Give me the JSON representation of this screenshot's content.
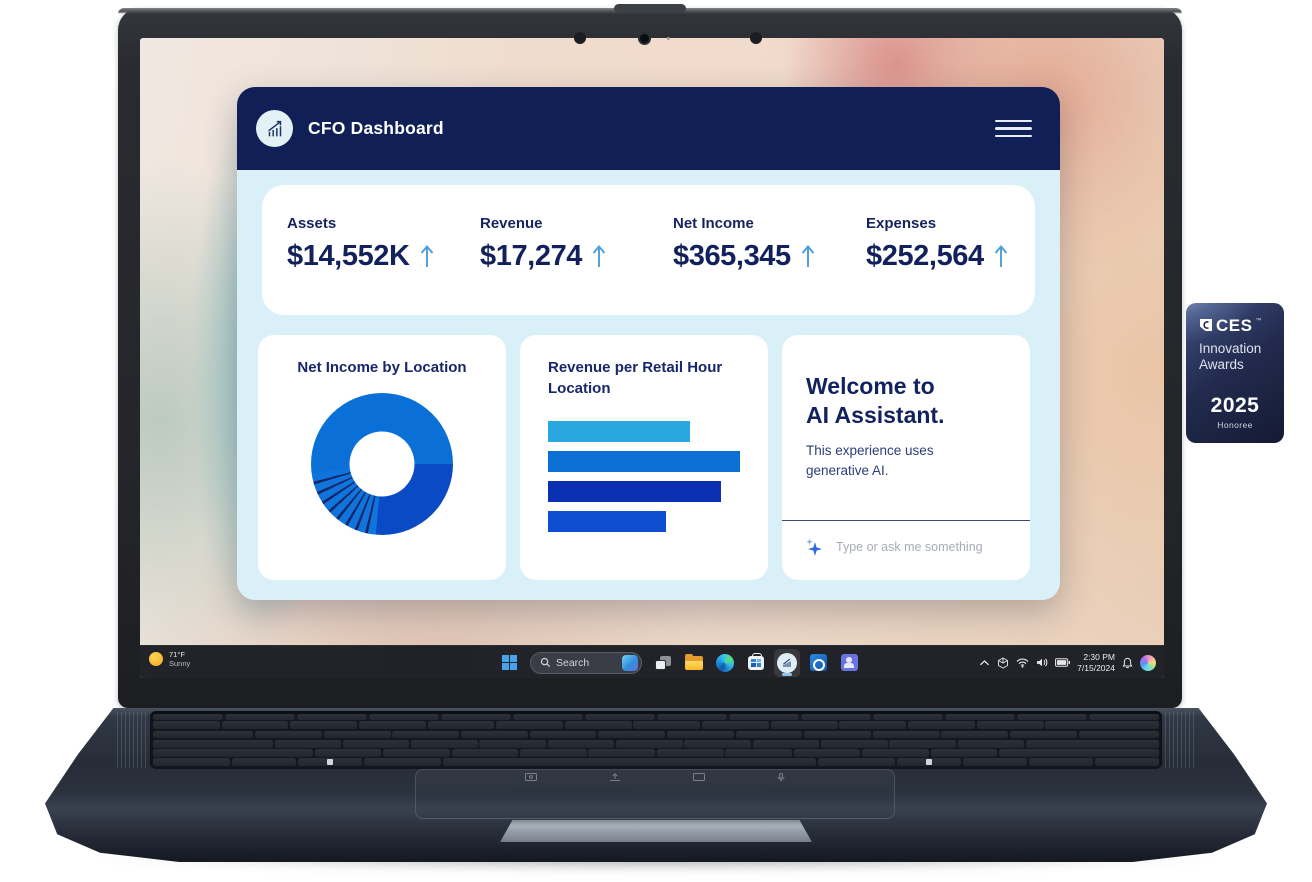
{
  "dashboard": {
    "title": "CFO Dashboard",
    "logo_icon": "chart-growth-icon",
    "menu_icon": "hamburger-icon",
    "accent_navy": "#101f55",
    "body_bg": "#d9f0f9",
    "metrics": [
      {
        "label": "Assets",
        "value": "$14,552K",
        "trend": "up"
      },
      {
        "label": "Revenue",
        "value": "$17,274",
        "trend": "up"
      },
      {
        "label": "Net Income",
        "value": "$365,345",
        "trend": "up"
      },
      {
        "label": "Expenses",
        "value": "$252,564",
        "trend": "up"
      }
    ],
    "donut_card": {
      "title": "Net Income by Location"
    },
    "bar_card": {
      "title": "Revenue per Retail Hour Location"
    },
    "assistant_card": {
      "title_line1": "Welcome to",
      "title_line2": "AI Assistant.",
      "description_line1": "This experience uses",
      "description_line2": "generative AI.",
      "input_placeholder": "Type or ask me something",
      "sparkle_icon": "ai-sparkle-icon"
    }
  },
  "chart_data": [
    {
      "type": "pie",
      "style": "donut",
      "title": "Net Income by Location",
      "hole_ratio": 0.46,
      "legend": false,
      "data_labels": false,
      "segments": [
        {
          "label": "location-a",
          "start_deg": 0,
          "end_deg": 90,
          "color": "#0B6FD8"
        },
        {
          "label": "location-b",
          "start_deg": 90,
          "end_deg": 185,
          "color": "#0A4AC4"
        },
        {
          "label": "small-locations",
          "start_deg": 185,
          "end_deg": 262,
          "slice_count": 9,
          "slice_color": "#0F74DC",
          "gap_color": "#14276B",
          "gap_deg": 2.3
        },
        {
          "label": "location-a-cont",
          "start_deg": 262,
          "end_deg": 360,
          "color": "#0B6FD8"
        }
      ]
    },
    {
      "type": "bar",
      "orientation": "horizontal",
      "title": "Revenue per Retail Hour Location",
      "axis_labels": false,
      "values_relative": [
        0.74,
        1.0,
        0.9,
        0.615
      ],
      "colors": [
        "#29A8E0",
        "#0B6FD3",
        "#0A30B2",
        "#0D4FD0"
      ]
    }
  ],
  "taskbar": {
    "weather": {
      "temperature": "71°F",
      "condition": "Sunny",
      "icon": "sun-icon"
    },
    "search": {
      "placeholder": "Search",
      "icon": "search-icon",
      "side_icon": "bing-icon"
    },
    "app_icons": [
      "windows-start-icon",
      "task-view-icon",
      "file-explorer-icon",
      "edge-browser-icon",
      "microsoft-store-icon",
      "cfo-dashboard-app-icon",
      "outlook-icon",
      "teams-icon"
    ],
    "active_app": "cfo-dashboard-app-icon",
    "tray": {
      "icons": [
        "chevron-up-icon",
        "device-cube-icon",
        "wifi-icon",
        "volume-icon",
        "battery-icon"
      ],
      "time": "2:30 PM",
      "date": "7/15/2024",
      "bell_icon": "notification-bell-icon",
      "copilot_icon": "copilot-icon"
    }
  },
  "award_badge": {
    "brand": "CES",
    "trademark": "™",
    "line1": "Innovation",
    "line2": "Awards",
    "year": "2025",
    "subtitle": "Honoree"
  }
}
